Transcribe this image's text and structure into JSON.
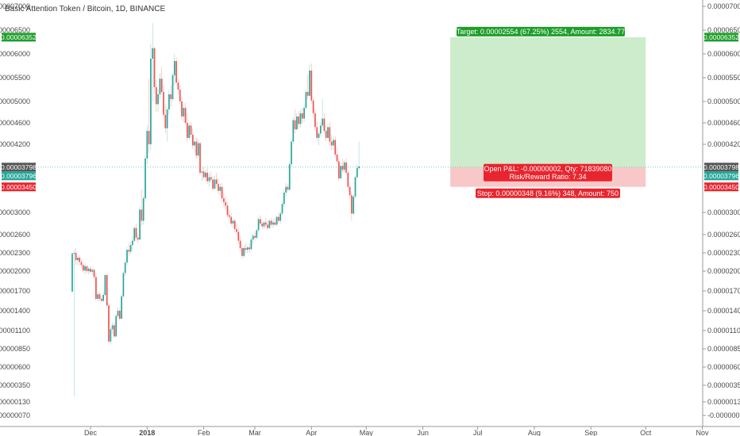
{
  "chart_data": {
    "type": "candlestick",
    "title": "Basic Attention Token / Bitcoin, 1D, BINANCE",
    "y_ticks": [
      "0.00007000",
      "0.00006500",
      "0.00006000",
      "0.00005500",
      "0.00005000",
      "0.00004600",
      "0.00004200",
      "0.00003000",
      "0.00002600",
      "0.00002300",
      "0.00002000",
      "0.00001700",
      "0.00001400",
      "0.00001100",
      "0.00000850",
      "0.00000600",
      "0.00000350",
      "0.00000130",
      "-0.00000070"
    ],
    "y_tick_values": [
      7e-05,
      6.5e-05,
      6e-05,
      5.5e-05,
      5e-05,
      4.6e-05,
      4.2e-05,
      3e-05,
      2.6e-05,
      2.3e-05,
      2e-05,
      1.7e-05,
      1.4e-05,
      1.1e-05,
      8.5e-06,
      6e-06,
      3.5e-06,
      1.3e-06,
      -7e-07
    ],
    "x_ticks": [
      "Dec",
      "2018",
      "Feb",
      "Mar",
      "Apr",
      "May",
      "Jun",
      "Jul",
      "Aug",
      "Sep",
      "Oct",
      "Nov"
    ],
    "x_tick_dates": [
      "2017-12-01",
      "2018-01-01",
      "2018-02-01",
      "2018-03-01",
      "2018-04-01",
      "2018-05-01",
      "2018-06-01",
      "2018-07-01",
      "2018-08-01",
      "2018-09-01",
      "2018-10-01",
      "2018-11-01"
    ],
    "price_tags": {
      "target": "0.00006352",
      "current_bar": "0.00003798",
      "current_close": "0.00003796",
      "stop": "0.00003450"
    },
    "position": {
      "entry": 3.798e-05,
      "target": 6.352e-05,
      "stop": 3.45e-05,
      "start_date": "2018-06-16",
      "end_date": "2018-10-01",
      "target_label": "Target: 0.00002554 (67.25%) 2554, Amount: 2834.77",
      "pnl_label": "Open P&L: -0.00000002, Qty: 71839080",
      "rr_label": "Risk/Reward Ratio: 7.34",
      "stop_label": "Stop: 0.00000348 (9.16%) 348, Amount: 750"
    },
    "series": [
      {
        "start_date": "2017-11-21",
        "ohlc": [
          [
            1.69e-05,
            2.3e-05,
            1.69e-05,
            2.29e-05
          ],
          [
            2.29e-05,
            2.35e-05,
            2e-06,
            2.3e-05
          ],
          [
            2.3e-05,
            2.38e-05,
            2.1e-05,
            2.18e-05
          ],
          [
            2.18e-05,
            2.25e-05,
            2.1e-05,
            2.22e-05
          ],
          [
            2.22e-05,
            2.26e-05,
            2.1e-05,
            2.15e-05
          ],
          [
            2.15e-05,
            2.2e-05,
            2.05e-05,
            2.1e-05
          ],
          [
            2.1e-05,
            2.12e-05,
            1.98e-05,
            2.01e-05
          ],
          [
            2.01e-05,
            2.12e-05,
            1.95e-05,
            2.08e-05
          ],
          [
            2.08e-05,
            2.1e-05,
            1.97e-05,
            2e-05
          ],
          [
            2e-05,
            2.07e-05,
            1.95e-05,
            2.04e-05
          ],
          [
            2.04e-05,
            2.08e-05,
            1.96e-05,
            1.99e-05
          ],
          [
            1.99e-05,
            2.04e-05,
            1.94e-05,
            2.02e-05
          ],
          [
            2.02e-05,
            2.05e-05,
            1.88e-05,
            1.91e-05
          ],
          [
            1.91e-05,
            1.95e-05,
            1.55e-05,
            1.58e-05
          ],
          [
            1.58e-05,
            1.69e-05,
            1.53e-05,
            1.65e-05
          ],
          [
            1.65e-05,
            1.68e-05,
            1.55e-05,
            1.58e-05
          ],
          [
            1.58e-05,
            1.62e-05,
            1.52e-05,
            1.55e-05
          ],
          [
            1.55e-05,
            1.68e-05,
            1.53e-05,
            1.64e-05
          ],
          [
            1.64e-05,
            1.95e-05,
            1.62e-05,
            1.94e-05
          ],
          [
            1.94e-05,
            1.96e-05,
            1.45e-05,
            1.48e-05
          ],
          [
            1.48e-05,
            1.52e-05,
            9.3e-06,
            9.5e-06
          ],
          [
            9.5e-06,
            1.15e-05,
            9.2e-06,
            1.12e-05
          ],
          [
            1.12e-05,
            1.22e-05,
            1.05e-05,
            1.18e-05
          ],
          [
            1.18e-05,
            1.23e-05,
            1e-05,
            1.02e-05
          ],
          [
            1.02e-05,
            1.35e-05,
            1.01e-05,
            1.32e-05
          ],
          [
            1.32e-05,
            1.45e-05,
            1.28e-05,
            1.4e-05
          ],
          [
            1.4e-05,
            1.43e-05,
            1.25e-05,
            1.28e-05
          ],
          [
            1.28e-05,
            1.65e-05,
            1.27e-05,
            1.62e-05
          ],
          [
            1.62e-05,
            2e-05,
            1.6e-05,
            1.97e-05
          ],
          [
            1.97e-05,
            2.18e-05,
            1.93e-05,
            2.14e-05
          ],
          [
            2.14e-05,
            2.4e-05,
            2.1e-05,
            2.35e-05
          ],
          [
            2.35e-05,
            2.45e-05,
            2.25e-05,
            2.32e-05
          ],
          [
            2.32e-05,
            2.48e-05,
            2.28e-05,
            2.43e-05
          ],
          [
            2.43e-05,
            2.58e-05,
            2.35e-05,
            2.5e-05
          ],
          [
            2.5e-05,
            2.75e-05,
            2.48e-05,
            2.72e-05
          ],
          [
            2.72e-05,
            2.8e-05,
            2.5e-05,
            2.55e-05
          ],
          [
            2.55e-05,
            2.62e-05,
            2.45e-05,
            2.52e-05
          ],
          [
            2.52e-05,
            3.1e-05,
            2.5e-05,
            3.05e-05
          ],
          [
            3.05e-05,
            3.4e-05,
            2.75e-05,
            2.85e-05
          ],
          [
            2.85e-05,
            3.3e-05,
            2.78e-05,
            3.25e-05
          ],
          [
            3.25e-05,
            4e-05,
            3.2e-05,
            3.95e-05
          ],
          [
            3.95e-05,
            4.55e-05,
            3.85e-05,
            4.45e-05
          ],
          [
            4.45e-05,
            5.48e-05,
            4.05e-05,
            4.2e-05
          ],
          [
            4.2e-05,
            6.2e-05,
            4.1e-05,
            5.9e-05
          ],
          [
            5.9e-05,
            6.65e-05,
            5e-05,
            6.12e-05
          ],
          [
            6.12e-05,
            6.15e-05,
            5.15e-05,
            5.3e-05
          ],
          [
            5.3e-05,
            5.45e-05,
            4.8e-05,
            4.95e-05
          ],
          [
            4.95e-05,
            5.25e-05,
            4.8e-05,
            5.15e-05
          ],
          [
            5.15e-05,
            5.6e-05,
            5.05e-05,
            5.48e-05
          ],
          [
            5.48e-05,
            5.72e-05,
            5.15e-05,
            5.2e-05
          ],
          [
            5.2e-05,
            5.35e-05,
            4.7e-05,
            4.75e-05
          ],
          [
            4.75e-05,
            4.95e-05,
            4.4e-05,
            4.5e-05
          ],
          [
            4.5e-05,
            4.9e-05,
            4.25e-05,
            4.85e-05
          ],
          [
            4.85e-05,
            5.25e-05,
            4.75e-05,
            5.15e-05
          ],
          [
            5.15e-05,
            5.35e-05,
            4.9e-05,
            5.05e-05
          ],
          [
            5.05e-05,
            5.6e-05,
            5e-05,
            5.55e-05
          ],
          [
            5.55e-05,
            6e-05,
            5.35e-05,
            5.85e-05
          ],
          [
            5.85e-05,
            5.92e-05,
            5.35e-05,
            5.4e-05
          ],
          [
            5.4e-05,
            5.48e-05,
            5.15e-05,
            5.25e-05
          ],
          [
            5.25e-05,
            5.35e-05,
            4.95e-05,
            5e-05
          ],
          [
            5e-05,
            5.1e-05,
            4.65e-05,
            4.72e-05
          ],
          [
            4.72e-05,
            4.95e-05,
            4.62e-05,
            4.88e-05
          ],
          [
            4.88e-05,
            4.98e-05,
            4.55e-05,
            4.6e-05
          ],
          [
            4.6e-05,
            4.78e-05,
            4.25e-05,
            4.32e-05
          ],
          [
            4.32e-05,
            4.6e-05,
            4.28e-05,
            4.55e-05
          ],
          [
            4.55e-05,
            4.62e-05,
            4.32e-05,
            4.38e-05
          ],
          [
            4.38e-05,
            4.5e-05,
            4.12e-05,
            4.18e-05
          ],
          [
            4.18e-05,
            4.32e-05,
            4.05e-05,
            4.25e-05
          ],
          [
            4.25e-05,
            4.32e-05,
            3.95e-05,
            4e-05
          ],
          [
            4e-05,
            4.3e-05,
            3.95e-05,
            4.22e-05
          ],
          [
            4.22e-05,
            4.25e-05,
            3.65e-05,
            3.7e-05
          ],
          [
            3.7e-05,
            3.78e-05,
            3.55e-05,
            3.72e-05
          ],
          [
            3.72e-05,
            3.8e-05,
            3.58e-05,
            3.62e-05
          ],
          [
            3.62e-05,
            3.75e-05,
            3.55e-05,
            3.7e-05
          ],
          [
            3.7e-05,
            3.78e-05,
            3.5e-05,
            3.55e-05
          ],
          [
            3.55e-05,
            3.68e-05,
            3.45e-05,
            3.62e-05
          ],
          [
            3.62e-05,
            3.72e-05,
            3.52e-05,
            3.58e-05
          ],
          [
            3.58e-05,
            3.65e-05,
            3.38e-05,
            3.42e-05
          ],
          [
            3.42e-05,
            3.65e-05,
            3.4e-05,
            3.58e-05
          ],
          [
            3.58e-05,
            3.7e-05,
            3.45e-05,
            3.5e-05
          ],
          [
            3.5e-05,
            3.6e-05,
            3.32e-05,
            3.38e-05
          ],
          [
            3.38e-05,
            3.5e-05,
            3.3e-05,
            3.45e-05
          ],
          [
            3.45e-05,
            3.52e-05,
            3.2e-05,
            3.25e-05
          ],
          [
            3.25e-05,
            3.35e-05,
            3.1e-05,
            3.18e-05
          ],
          [
            3.18e-05,
            3.28e-05,
            3.05e-05,
            3.12e-05
          ],
          [
            3.12e-05,
            3.18e-05,
            2.9e-05,
            2.95e-05
          ],
          [
            2.95e-05,
            3.05e-05,
            2.85e-05,
            2.92e-05
          ],
          [
            2.92e-05,
            2.98e-05,
            2.75e-05,
            2.8e-05
          ],
          [
            2.8e-05,
            2.9e-05,
            2.72e-05,
            2.85e-05
          ],
          [
            2.85e-05,
            2.88e-05,
            2.65e-05,
            2.7e-05
          ],
          [
            2.7e-05,
            2.8e-05,
            2.6e-05,
            2.65e-05
          ],
          [
            2.65e-05,
            2.72e-05,
            2.45e-05,
            2.5e-05
          ],
          [
            2.5e-05,
            2.58e-05,
            2.32e-05,
            2.38e-05
          ],
          [
            2.38e-05,
            2.45e-05,
            2.2e-05,
            2.25e-05
          ],
          [
            2.25e-05,
            2.42e-05,
            2.22e-05,
            2.38e-05
          ],
          [
            2.38e-05,
            2.45e-05,
            2.3e-05,
            2.35e-05
          ],
          [
            2.35e-05,
            2.42e-05,
            2.3e-05,
            2.39e-05
          ],
          [
            2.39e-05,
            2.46e-05,
            2.3e-05,
            2.36e-05
          ],
          [
            2.36e-05,
            2.55e-05,
            2.34e-05,
            2.52e-05
          ],
          [
            2.52e-05,
            2.62e-05,
            2.45e-05,
            2.58e-05
          ],
          [
            2.58e-05,
            2.65e-05,
            2.5e-05,
            2.55e-05
          ],
          [
            2.55e-05,
            2.7e-05,
            2.52e-05,
            2.68e-05
          ],
          [
            2.68e-05,
            2.92e-05,
            2.65e-05,
            2.88e-05
          ],
          [
            2.88e-05,
            2.95e-05,
            2.75e-05,
            2.8e-05
          ],
          [
            2.8e-05,
            2.85e-05,
            2.7e-05,
            2.75e-05
          ],
          [
            2.75e-05,
            2.85e-05,
            2.7e-05,
            2.82e-05
          ],
          [
            2.82e-05,
            2.9e-05,
            2.72e-05,
            2.78e-05
          ],
          [
            2.78e-05,
            2.85e-05,
            2.68e-05,
            2.72e-05
          ],
          [
            2.72e-05,
            2.88e-05,
            2.7e-05,
            2.85e-05
          ],
          [
            2.85e-05,
            2.9e-05,
            2.75e-05,
            2.78e-05
          ],
          [
            2.78e-05,
            2.88e-05,
            2.72e-05,
            2.82e-05
          ],
          [
            2.82e-05,
            2.9e-05,
            2.75e-05,
            2.78e-05
          ],
          [
            2.78e-05,
            2.95e-05,
            2.76e-05,
            2.92e-05
          ],
          [
            2.92e-05,
            3e-05,
            2.8e-05,
            2.85e-05
          ],
          [
            2.85e-05,
            3.02e-05,
            2.8e-05,
            2.98e-05
          ],
          [
            2.98e-05,
            3.2e-05,
            2.95e-05,
            3.15e-05
          ],
          [
            3.15e-05,
            3.4e-05,
            3.1e-05,
            3.35e-05
          ],
          [
            3.35e-05,
            3.52e-05,
            3.28e-05,
            3.45e-05
          ],
          [
            3.45e-05,
            3.5e-05,
            3.35e-05,
            3.4e-05
          ],
          [
            3.4e-05,
            3.9e-05,
            3.38e-05,
            3.85e-05
          ],
          [
            3.85e-05,
            4.3e-05,
            3.8e-05,
            4.25e-05
          ],
          [
            4.25e-05,
            4.7e-05,
            4.2e-05,
            4.65e-05
          ],
          [
            4.65e-05,
            4.85e-05,
            4.4e-05,
            4.48e-05
          ],
          [
            4.48e-05,
            4.78e-05,
            4.45e-05,
            4.72e-05
          ],
          [
            4.72e-05,
            4.82e-05,
            4.5e-05,
            4.58e-05
          ],
          [
            4.58e-05,
            4.85e-05,
            4.52e-05,
            4.78e-05
          ],
          [
            4.78e-05,
            4.88e-05,
            4.6e-05,
            4.68e-05
          ],
          [
            4.68e-05,
            4.95e-05,
            4.62e-05,
            4.88e-05
          ],
          [
            4.88e-05,
            5.25e-05,
            4.85e-05,
            5.2e-05
          ],
          [
            5.2e-05,
            5.55e-05,
            5.05e-05,
            5.12e-05
          ],
          [
            5.12e-05,
            5.78e-05,
            5.1e-05,
            5.65e-05
          ],
          [
            5.65e-05,
            5.8e-05,
            4.95e-05,
            5.02e-05
          ],
          [
            5.02e-05,
            5.08e-05,
            4.7e-05,
            4.78e-05
          ],
          [
            4.78e-05,
            4.85e-05,
            4.45e-05,
            4.52e-05
          ],
          [
            4.52e-05,
            4.62e-05,
            4.25e-05,
            4.32e-05
          ],
          [
            4.32e-05,
            4.45e-05,
            4.18e-05,
            4.4e-05
          ],
          [
            4.4e-05,
            4.62e-05,
            4.35e-05,
            4.55e-05
          ],
          [
            4.55e-05,
            5.05e-05,
            4.5e-05,
            4.68e-05
          ],
          [
            4.68e-05,
            4.78e-05,
            4.4e-05,
            4.45e-05
          ],
          [
            4.45e-05,
            4.55e-05,
            4.25e-05,
            4.32e-05
          ],
          [
            4.32e-05,
            4.58e-05,
            4.3e-05,
            4.52e-05
          ],
          [
            4.52e-05,
            4.62e-05,
            4.18e-05,
            4.25e-05
          ],
          [
            4.25e-05,
            4.38e-05,
            4.1e-05,
            4.18e-05
          ],
          [
            4.18e-05,
            4.35e-05,
            4.1e-05,
            4.28e-05
          ],
          [
            4.28e-05,
            4.35e-05,
            3.98e-05,
            4.02e-05
          ],
          [
            4.02e-05,
            4.15e-05,
            3.85e-05,
            3.9e-05
          ],
          [
            3.9e-05,
            3.95e-05,
            3.55e-05,
            3.6e-05
          ],
          [
            3.6e-05,
            3.88e-05,
            3.58e-05,
            3.82e-05
          ],
          [
            3.82e-05,
            3.95e-05,
            3.7e-05,
            3.75e-05
          ],
          [
            3.75e-05,
            3.92e-05,
            3.7e-05,
            3.88e-05
          ],
          [
            3.88e-05,
            3.95e-05,
            3.65e-05,
            3.7e-05
          ],
          [
            3.7e-05,
            3.75e-05,
            3.4e-05,
            3.45e-05
          ],
          [
            3.45e-05,
            3.52e-05,
            3.25e-05,
            3.3e-05
          ],
          [
            3.3e-05,
            3.35e-05,
            2.85e-05,
            2.98e-05
          ],
          [
            2.98e-05,
            3.32e-05,
            2.95e-05,
            3.28e-05
          ],
          [
            3.28e-05,
            3.65e-05,
            3.25e-05,
            3.62e-05
          ],
          [
            3.62e-05,
            3.85e-05,
            3.6e-05,
            3.78e-05
          ],
          [
            3.78e-05,
            4.25e-05,
            3.75e-05,
            3.81e-05
          ]
        ]
      }
    ]
  },
  "colors": {
    "up": "#26a69a",
    "down": "#ef5350",
    "target_zone": "#cdeccb",
    "stop_zone": "#f8c8c8",
    "target_label": "#1e9e2a",
    "stop_label": "#e8252e",
    "current_tag": "#555555",
    "close_tag": "#26a69a",
    "entry_line": "#7fc8c0"
  }
}
